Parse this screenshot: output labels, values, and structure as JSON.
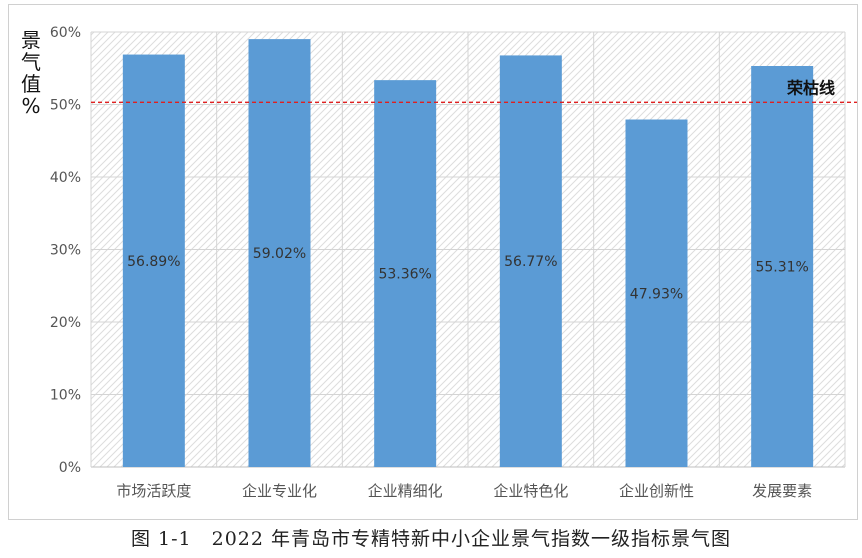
{
  "caption": "图 1-1　2022 年青岛市专精特新中小企业景气指数一级指标景气图",
  "chart_data": {
    "type": "bar",
    "categories": [
      "市场活跃度",
      "企业专业化",
      "企业精细化",
      "企业特色化",
      "企业创新性",
      "发展要素"
    ],
    "values": [
      56.89,
      59.02,
      53.36,
      56.77,
      47.93,
      55.31
    ],
    "value_labels": [
      "56.89%",
      "59.02%",
      "53.36%",
      "56.77%",
      "47.93%",
      "55.31%"
    ],
    "ylabel": "景气值%",
    "ylim": [
      0,
      60
    ],
    "yticks": [
      0,
      10,
      20,
      30,
      40,
      50,
      60
    ],
    "ytick_labels": [
      "0%",
      "10%",
      "20%",
      "30%",
      "40%",
      "50%",
      "60%"
    ],
    "reference_line": {
      "value": 50.3,
      "label": "荣枯线",
      "color": "#e02020",
      "style": "dashed"
    },
    "bar_color": "#5b9bd5",
    "grid": true,
    "plot_background": "hatched"
  }
}
